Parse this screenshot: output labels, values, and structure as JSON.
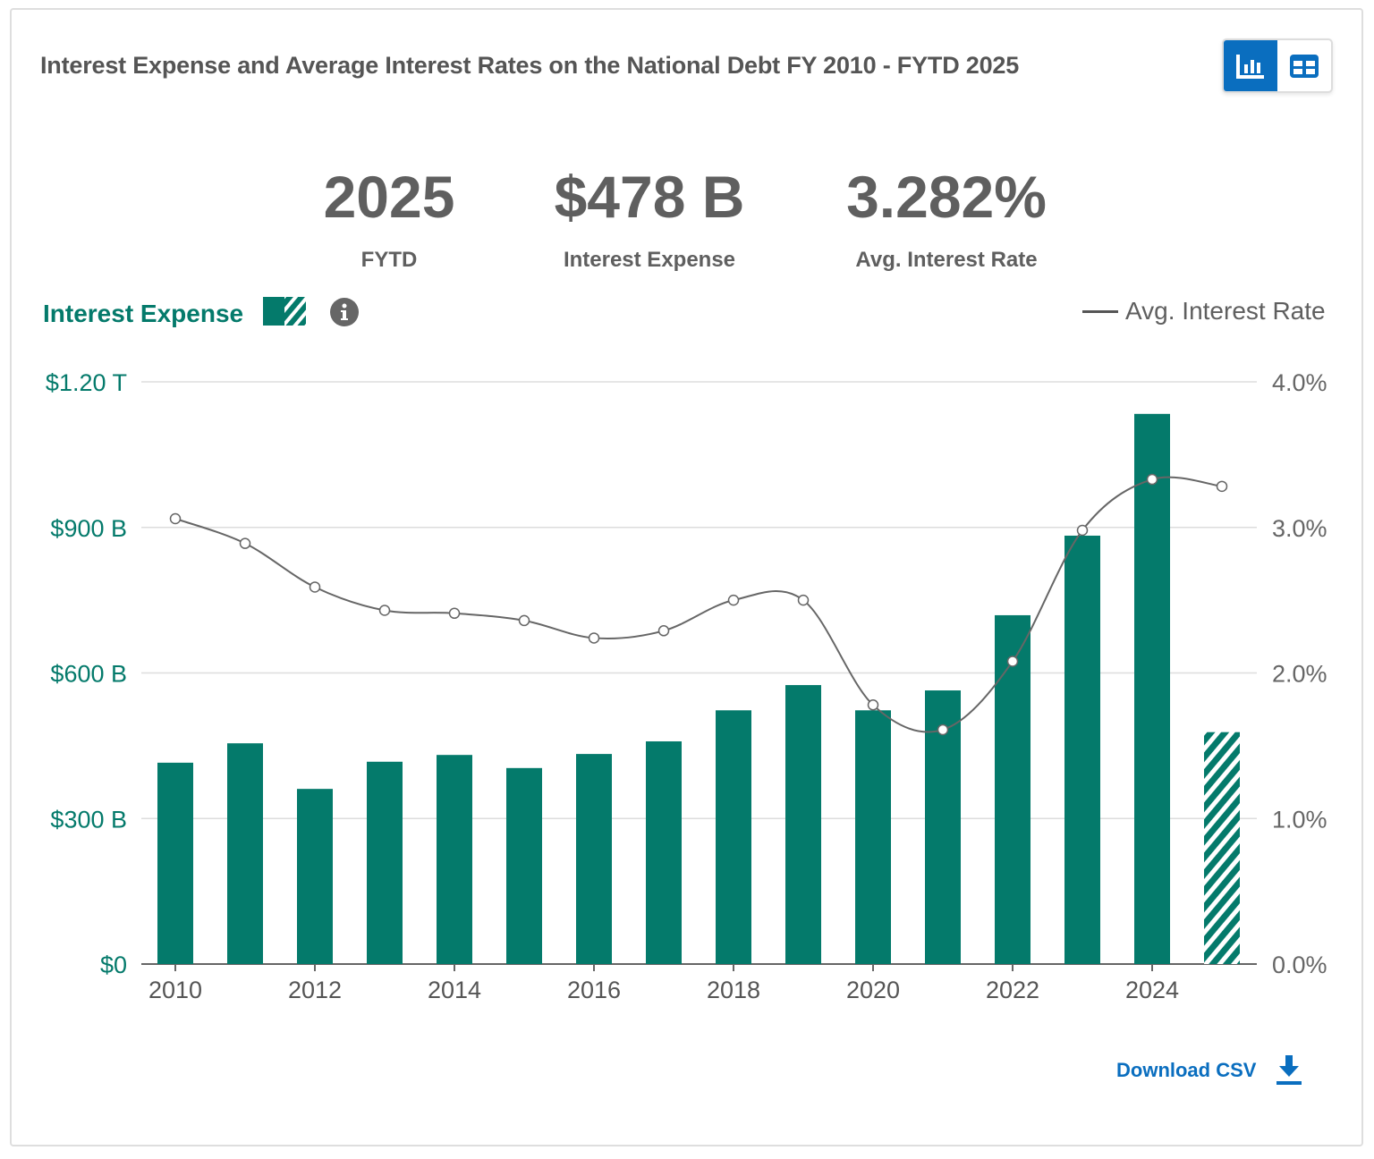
{
  "header": {
    "title": "Interest Expense and Average Interest Rates on the National Debt FY 2010 - FYTD 2025",
    "view_chart": "chart-view",
    "view_table": "table-view"
  },
  "stats": [
    {
      "value": "2025",
      "label": "FYTD"
    },
    {
      "value": "$478 B",
      "label": "Interest Expense"
    },
    {
      "value": "3.282%",
      "label": "Avg. Interest Rate"
    }
  ],
  "legend": {
    "left": "Interest Expense",
    "right": "Avg. Interest Rate"
  },
  "download": "Download CSV",
  "colors": {
    "bar": "#047a6b",
    "line": "#666666",
    "accent": "#0a6ebf"
  },
  "chart_data": {
    "type": "bar",
    "title": "Interest Expense and Average Interest Rates on the National Debt FY 2010 - FYTD 2025",
    "categories": [
      2010,
      2011,
      2012,
      2013,
      2014,
      2015,
      2016,
      2017,
      2018,
      2019,
      2020,
      2021,
      2022,
      2023,
      2024,
      2025
    ],
    "series": [
      {
        "name": "Interest Expense",
        "unit": "B",
        "axis": "left",
        "type": "bar",
        "values": [
          415,
          455,
          361,
          417,
          431,
          404,
          433,
          459,
          523,
          575,
          523,
          564,
          719,
          883,
          1134,
          478
        ],
        "partial": [
          2025
        ]
      },
      {
        "name": "Avg. Interest Rate",
        "unit": "%",
        "axis": "right",
        "type": "line",
        "values": [
          3.06,
          2.89,
          2.59,
          2.43,
          2.41,
          2.36,
          2.24,
          2.29,
          2.5,
          2.5,
          1.78,
          1.61,
          2.08,
          2.98,
          3.33,
          3.282
        ]
      }
    ],
    "ylim_left": [
      0,
      1200
    ],
    "ylim_right": [
      0,
      4
    ],
    "left_ticks": [
      "$0",
      "$300 B",
      "$600 B",
      "$900 B",
      "$1.20 T"
    ],
    "right_ticks": [
      "0.0%",
      "1.0%",
      "2.0%",
      "3.0%",
      "4.0%"
    ],
    "x_ticks": [
      "2010",
      "2012",
      "2014",
      "2016",
      "2018",
      "2020",
      "2022",
      "2024"
    ],
    "grid": true
  }
}
